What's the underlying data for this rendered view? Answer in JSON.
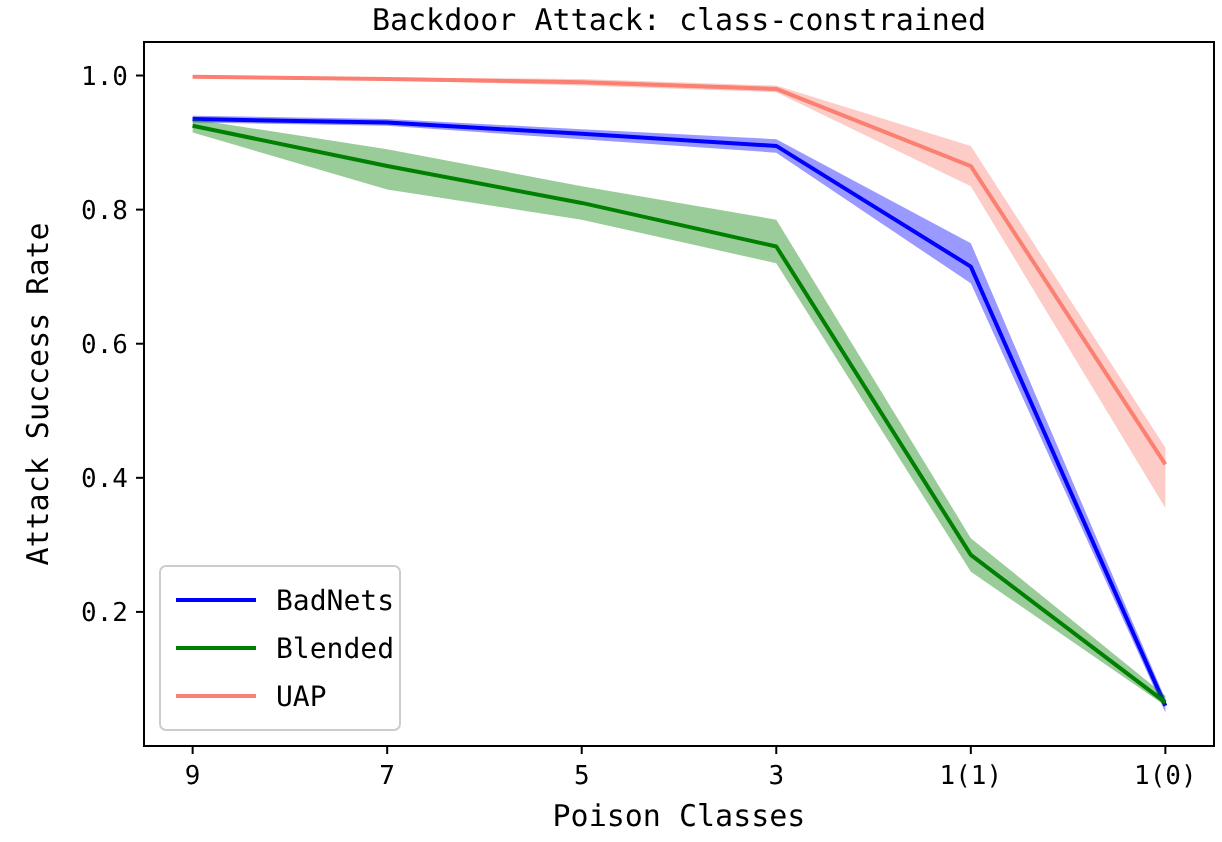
{
  "chart_data": {
    "type": "line",
    "title": "Backdoor Attack: class-constrained",
    "xlabel": "Poison Classes",
    "ylabel": "Attack Success Rate",
    "categories": [
      "9",
      "7",
      "5",
      "3",
      "1(1)",
      "1(0)"
    ],
    "ylim": [
      0.0,
      1.05
    ],
    "yticks": [
      {
        "value": 0.2,
        "label": "0.2"
      },
      {
        "value": 0.4,
        "label": "0.4"
      },
      {
        "value": 0.6,
        "label": "0.6"
      },
      {
        "value": 0.8,
        "label": "0.8"
      },
      {
        "value": 1.0,
        "label": "1.0"
      }
    ],
    "grid": false,
    "legend": "bottom left",
    "line_style": "solid",
    "marker": "none",
    "series": [
      {
        "name": "BadNets",
        "color": "#0000ff",
        "values": [
          0.935,
          0.93,
          0.913,
          0.895,
          0.715,
          0.06
        ],
        "lower": [
          0.93,
          0.925,
          0.905,
          0.885,
          0.69,
          0.05
        ],
        "upper": [
          0.94,
          0.935,
          0.92,
          0.905,
          0.75,
          0.07
        ]
      },
      {
        "name": "Blended",
        "color": "#008000",
        "values": [
          0.925,
          0.865,
          0.81,
          0.745,
          0.285,
          0.065
        ],
        "lower": [
          0.915,
          0.83,
          0.785,
          0.72,
          0.26,
          0.06
        ],
        "upper": [
          0.935,
          0.89,
          0.835,
          0.785,
          0.31,
          0.075
        ]
      },
      {
        "name": "UAP",
        "color": "#fa8072",
        "values": [
          0.998,
          0.995,
          0.99,
          0.98,
          0.865,
          0.42
        ],
        "lower": [
          0.996,
          0.993,
          0.985,
          0.975,
          0.835,
          0.355
        ],
        "upper": [
          1.0,
          0.997,
          0.995,
          0.985,
          0.895,
          0.445
        ]
      }
    ]
  }
}
